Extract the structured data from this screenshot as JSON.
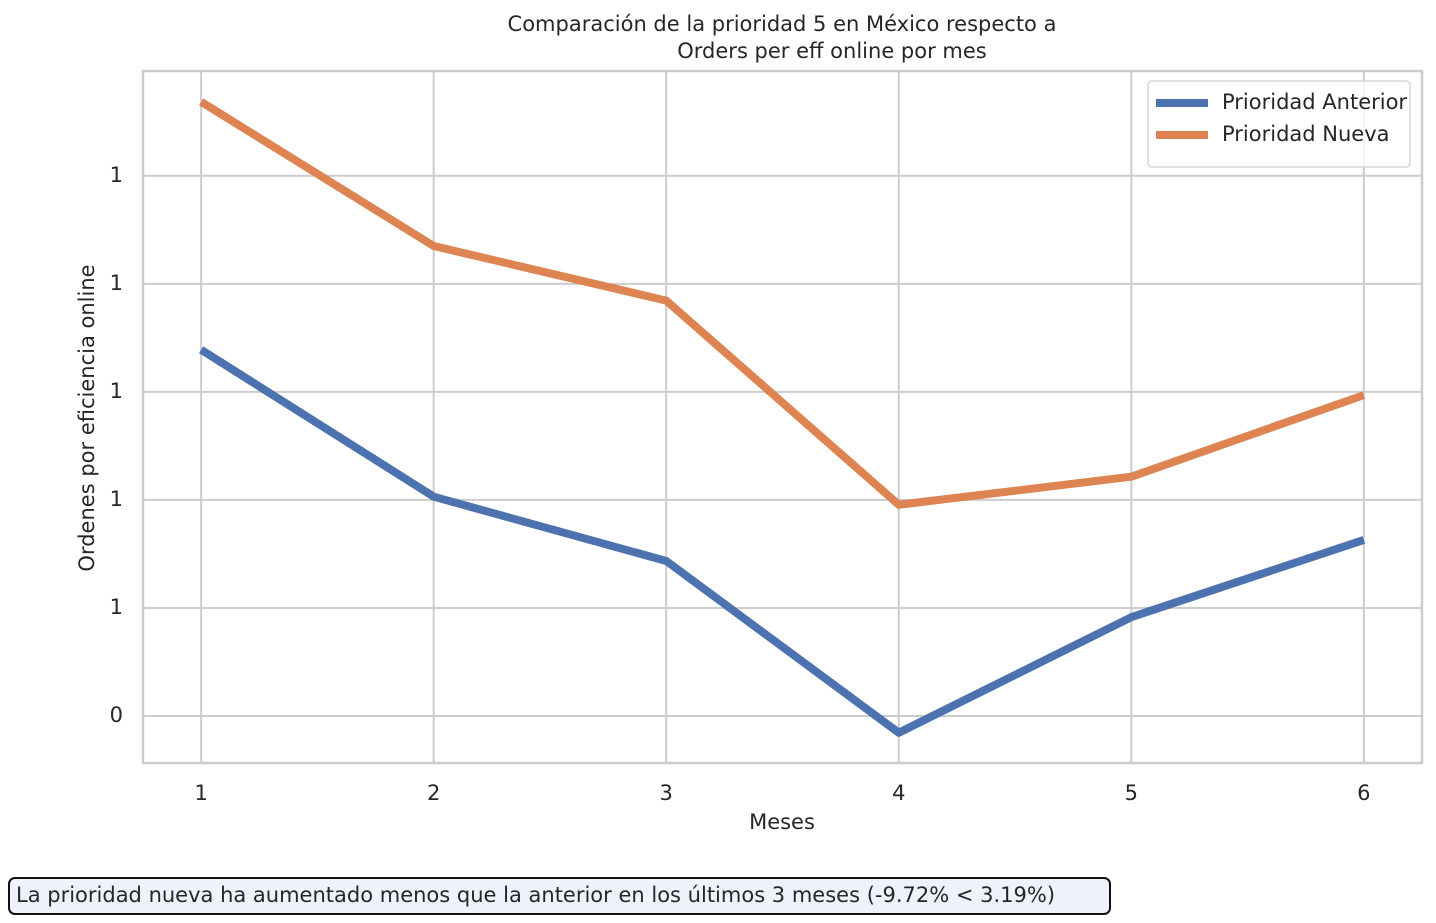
{
  "chart_data": {
    "type": "line",
    "title": [
      "Comparación de la prioridad 5 en México respecto a",
      "Orders per eff online por mes"
    ],
    "xlabel": "Meses",
    "ylabel": "Ordenes por eficiencia online",
    "x": [
      1,
      2,
      3,
      4,
      5,
      6
    ],
    "series": [
      {
        "name": "Prioridad Anterior",
        "color": "#4c72b0",
        "values": [
          1.078,
          0.806,
          0.687,
          0.369,
          0.583,
          0.726
        ]
      },
      {
        "name": "Prioridad Nueva",
        "color": "#dd8452",
        "values": [
          1.537,
          1.27,
          1.169,
          0.791,
          0.843,
          0.994
        ]
      }
    ],
    "xlim": [
      0.75,
      6.25
    ],
    "xticks": [
      1,
      2,
      3,
      4,
      5,
      6
    ],
    "ylim": [
      0.313,
      1.594
    ],
    "yticks": [
      {
        "value": 0.4,
        "label": "0"
      },
      {
        "value": 0.6,
        "label": "1"
      },
      {
        "value": 0.8,
        "label": "1"
      },
      {
        "value": 1.0,
        "label": "1"
      },
      {
        "value": 1.2,
        "label": "1"
      },
      {
        "value": 1.4,
        "label": "1"
      }
    ],
    "grid": true,
    "legend": "upper right",
    "annotation": "La prioridad nueva ha aumentado menos que la anterior en los últimos 3 meses (-9.72% < 3.19%)"
  }
}
